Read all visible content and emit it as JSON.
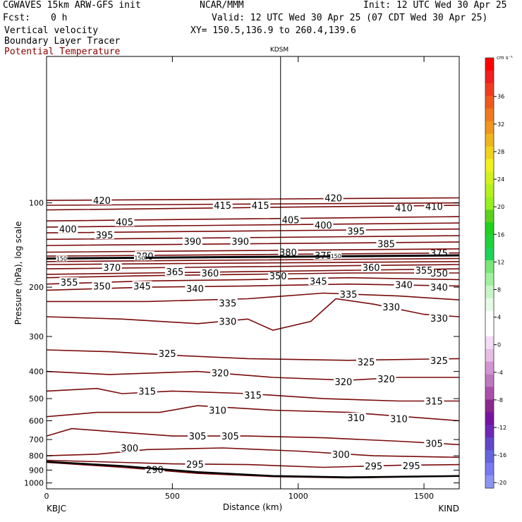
{
  "header": {
    "model": "CGWAVES 15km ARW-GFS init",
    "org": "NCAR/MMM",
    "init": "Init: 12 UTC Wed 30 Apr 25",
    "fcst_label": "Fcst:",
    "fcst_value": "0 h",
    "valid": "Valid: 12 UTC Wed 30 Apr 25 (07 CDT Wed 30 Apr 25)",
    "field1": "Vertical velocity",
    "xy": "XY= 150.5,136.9 to 260.4,139.6",
    "field2": "Boundary Layer Tracer",
    "field3": "Potential Temperature",
    "field3_color": "#8b0000"
  },
  "chart_data": {
    "type": "contour cross-section",
    "title": "KDSM",
    "xlabel": "Distance (km)",
    "ylabel": "Pressure (hPa), log scale",
    "xlim": [
      0,
      1640
    ],
    "ylim_hpa": [
      1050,
      30
    ],
    "x_ticks": [
      0,
      500,
      1000,
      1500
    ],
    "x_tick_labels": [
      "0",
      "500",
      "1000",
      "1500"
    ],
    "y_ticks": [
      100,
      200,
      300,
      400,
      500,
      600,
      700,
      800,
      900,
      1000
    ],
    "y_tick_labels": [
      "100",
      "200",
      "300",
      "400",
      "500",
      "600",
      "700",
      "800",
      "900",
      "1000"
    ],
    "start_station": "KBJC",
    "end_station": "KIND",
    "marker_station": "KDSM",
    "marker_distance_km": 930,
    "contour_color": "#7a0a0a",
    "contours": [
      {
        "theta": "290",
        "points": [
          [
            0,
            845
          ],
          [
            300,
            880
          ],
          [
            600,
            925
          ],
          [
            900,
            950
          ],
          [
            1200,
            960
          ],
          [
            1500,
            950
          ],
          [
            1640,
            945
          ]
        ],
        "labels": [
          [
            430,
            895
          ]
        ]
      },
      {
        "theta": "295",
        "points": [
          [
            0,
            830
          ],
          [
            200,
            840
          ],
          [
            500,
            855
          ],
          [
            800,
            860
          ],
          [
            1100,
            880
          ],
          [
            1400,
            865
          ],
          [
            1640,
            860
          ]
        ],
        "labels": [
          [
            590,
            858
          ],
          [
            1300,
            870
          ],
          [
            1450,
            868
          ]
        ]
      },
      {
        "theta": "300",
        "points": [
          [
            0,
            800
          ],
          [
            200,
            790
          ],
          [
            400,
            760
          ],
          [
            700,
            750
          ],
          [
            1000,
            770
          ],
          [
            1300,
            800
          ],
          [
            1640,
            810
          ]
        ],
        "labels": [
          [
            330,
            750
          ],
          [
            1170,
            790
          ]
        ]
      },
      {
        "theta": "305",
        "points": [
          [
            0,
            680
          ],
          [
            100,
            640
          ],
          [
            300,
            660
          ],
          [
            500,
            680
          ],
          [
            800,
            680
          ],
          [
            1100,
            690
          ],
          [
            1400,
            710
          ],
          [
            1640,
            730
          ]
        ],
        "labels": [
          [
            600,
            680
          ],
          [
            730,
            680
          ],
          [
            1540,
            722
          ]
        ]
      },
      {
        "theta": "310",
        "points": [
          [
            0,
            580
          ],
          [
            200,
            560
          ],
          [
            450,
            560
          ],
          [
            600,
            530
          ],
          [
            900,
            550
          ],
          [
            1200,
            560
          ],
          [
            1640,
            600
          ]
        ],
        "labels": [
          [
            680,
            550
          ],
          [
            1230,
            585
          ],
          [
            1400,
            590
          ]
        ]
      },
      {
        "theta": "315",
        "points": [
          [
            0,
            470
          ],
          [
            200,
            460
          ],
          [
            300,
            480
          ],
          [
            500,
            470
          ],
          [
            800,
            480
          ],
          [
            1100,
            500
          ],
          [
            1400,
            510
          ],
          [
            1640,
            510
          ]
        ],
        "labels": [
          [
            400,
            470
          ],
          [
            820,
            486
          ],
          [
            1540,
            510
          ]
        ]
      },
      {
        "theta": "320",
        "points": [
          [
            0,
            400
          ],
          [
            250,
            410
          ],
          [
            600,
            400
          ],
          [
            900,
            420
          ],
          [
            1200,
            430
          ],
          [
            1400,
            420
          ],
          [
            1640,
            420
          ]
        ],
        "labels": [
          [
            690,
            405
          ],
          [
            1180,
            435
          ],
          [
            1350,
            425
          ]
        ]
      },
      {
        "theta": "325",
        "points": [
          [
            0,
            335
          ],
          [
            250,
            340
          ],
          [
            500,
            350
          ],
          [
            800,
            360
          ],
          [
            1200,
            365
          ],
          [
            1640,
            360
          ]
        ],
        "labels": [
          [
            480,
            345
          ],
          [
            1270,
            370
          ],
          [
            1560,
            365
          ]
        ]
      },
      {
        "theta": "330",
        "points": [
          [
            0,
            255
          ],
          [
            300,
            260
          ],
          [
            600,
            270
          ],
          [
            800,
            260
          ],
          [
            900,
            285
          ],
          [
            1050,
            265
          ],
          [
            1150,
            220
          ],
          [
            1300,
            230
          ],
          [
            1500,
            250
          ],
          [
            1640,
            255
          ]
        ],
        "labels": [
          [
            720,
            265
          ],
          [
            1370,
            235
          ],
          [
            1560,
            258
          ]
        ]
      },
      {
        "theta": "335",
        "points": [
          [
            0,
            225
          ],
          [
            400,
            225
          ],
          [
            800,
            220
          ],
          [
            1100,
            210
          ],
          [
            1400,
            215
          ],
          [
            1640,
            222
          ]
        ],
        "labels": [
          [
            720,
            228
          ],
          [
            1200,
            212
          ]
        ]
      },
      {
        "theta": "340",
        "points": [
          [
            0,
            205
          ],
          [
            400,
            200
          ],
          [
            800,
            198
          ],
          [
            1200,
            195
          ],
          [
            1640,
            198
          ]
        ],
        "labels": [
          [
            590,
            202
          ],
          [
            1420,
            196
          ],
          [
            1560,
            200
          ]
        ]
      },
      {
        "theta": "345",
        "points": [
          [
            0,
            195
          ],
          [
            400,
            190
          ],
          [
            800,
            188
          ],
          [
            1200,
            185
          ],
          [
            1640,
            188
          ]
        ],
        "labels": [
          [
            380,
            198
          ],
          [
            1080,
            190
          ]
        ]
      },
      {
        "theta": "350",
        "points": [
          [
            0,
            185
          ],
          [
            400,
            182
          ],
          [
            800,
            180
          ],
          [
            1200,
            178
          ],
          [
            1640,
            178
          ]
        ],
        "labels": [
          [
            220,
            198
          ],
          [
            920,
            182
          ],
          [
            1560,
            178
          ]
        ]
      },
      {
        "theta": "355",
        "points": [
          [
            0,
            180
          ],
          [
            800,
            176
          ],
          [
            1640,
            172
          ]
        ],
        "labels": [
          [
            90,
            192
          ],
          [
            1500,
            174
          ]
        ]
      },
      {
        "theta": "360",
        "points": [
          [
            0,
            172
          ],
          [
            800,
            169
          ],
          [
            1640,
            166
          ]
        ],
        "labels": [
          [
            650,
            178
          ],
          [
            1290,
            170
          ]
        ]
      },
      {
        "theta": "365",
        "points": [
          [
            0,
            166
          ],
          [
            800,
            164
          ],
          [
            1640,
            162
          ]
        ],
        "labels": [
          [
            510,
            176
          ]
        ]
      },
      {
        "theta": "370",
        "points": [
          [
            0,
            162
          ],
          [
            800,
            160
          ],
          [
            1640,
            158
          ]
        ],
        "labels": [
          [
            260,
            170
          ]
        ]
      },
      {
        "theta": "375",
        "points": [
          [
            0,
            155
          ],
          [
            800,
            153
          ],
          [
            1640,
            151
          ]
        ],
        "labels": [
          [
            1100,
            154
          ],
          [
            1560,
            151
          ]
        ]
      },
      {
        "theta": "380",
        "points": [
          [
            0,
            150
          ],
          [
            800,
            148
          ],
          [
            1640,
            146
          ]
        ],
        "labels": [
          [
            390,
            155
          ],
          [
            960,
            150
          ]
        ]
      },
      {
        "theta": "385",
        "points": [
          [
            0,
            142
          ],
          [
            800,
            140
          ],
          [
            1640,
            138
          ]
        ],
        "labels": [
          [
            1350,
            140
          ]
        ]
      },
      {
        "theta": "390",
        "points": [
          [
            0,
            135
          ],
          [
            800,
            133
          ],
          [
            1640,
            131
          ]
        ],
        "labels": [
          [
            580,
            137
          ],
          [
            770,
            137
          ]
        ]
      },
      {
        "theta": "395",
        "points": [
          [
            0,
            128
          ],
          [
            800,
            126
          ],
          [
            1640,
            124
          ]
        ],
        "labels": [
          [
            230,
            130
          ],
          [
            1230,
            126
          ]
        ]
      },
      {
        "theta": "400",
        "points": [
          [
            0,
            122
          ],
          [
            800,
            120
          ],
          [
            1640,
            118
          ]
        ],
        "labels": [
          [
            85,
            124
          ],
          [
            1100,
            120
          ]
        ]
      },
      {
        "theta": "405",
        "points": [
          [
            0,
            116
          ],
          [
            800,
            114
          ],
          [
            1640,
            112
          ]
        ],
        "labels": [
          [
            310,
            117
          ],
          [
            970,
            115
          ]
        ]
      },
      {
        "theta": "410",
        "points": [
          [
            0,
            106
          ],
          [
            800,
            104
          ],
          [
            1640,
            102
          ]
        ],
        "labels": [
          [
            1420,
            104
          ],
          [
            1540,
            103
          ]
        ]
      },
      {
        "theta": "415",
        "points": [
          [
            0,
            102
          ],
          [
            800,
            101
          ],
          [
            1640,
            100
          ]
        ],
        "labels": [
          [
            700,
            102
          ],
          [
            850,
            102
          ]
        ]
      },
      {
        "theta": "420",
        "points": [
          [
            0,
            98
          ],
          [
            800,
            97
          ],
          [
            1640,
            96
          ]
        ],
        "labels": [
          [
            220,
            98
          ],
          [
            1140,
            96
          ]
        ]
      }
    ],
    "tracer_contour": {
      "value": "150",
      "points": [
        [
          0,
          158
        ],
        [
          800,
          156
        ],
        [
          1640,
          154
        ]
      ],
      "labels": [
        [
          60,
          158
        ],
        [
          370,
          157
        ],
        [
          1150,
          155
        ]
      ]
    },
    "terrain": {
      "points": [
        [
          0,
          840
        ],
        [
          300,
          870
        ],
        [
          600,
          915
        ],
        [
          900,
          945
        ],
        [
          1200,
          955
        ],
        [
          1500,
          948
        ],
        [
          1640,
          945
        ]
      ]
    },
    "colorbar": {
      "unit": "cm s⁻¹",
      "labels": [
        "36",
        "32",
        "28",
        "24",
        "20",
        "16",
        "12",
        "8",
        "4",
        "0",
        "-4",
        "-8",
        "-12",
        "-16",
        "-20"
      ],
      "colors": [
        "#ff0000",
        "#f01e1e",
        "#f03c1e",
        "#f05a1e",
        "#f0781e",
        "#f0961e",
        "#f0b41e",
        "#f0d21e",
        "#f0f01e",
        "#d2f01e",
        "#b4f01e",
        "#96f01e",
        "#5ad21e",
        "#1ed21e",
        "#1ed23c",
        "#1ed25a",
        "#78e678",
        "#a0f0a0",
        "#c8f5c8",
        "#e6fae6",
        "#ffffff",
        "#ffffff",
        "#f5dcf5",
        "#e6bee6",
        "#d296d2",
        "#be78be",
        "#aa50aa",
        "#8c288c",
        "#7814a0",
        "#6e28b4",
        "#6446c8",
        "#6464dc",
        "#7878f0",
        "#8c96f0"
      ]
    }
  }
}
